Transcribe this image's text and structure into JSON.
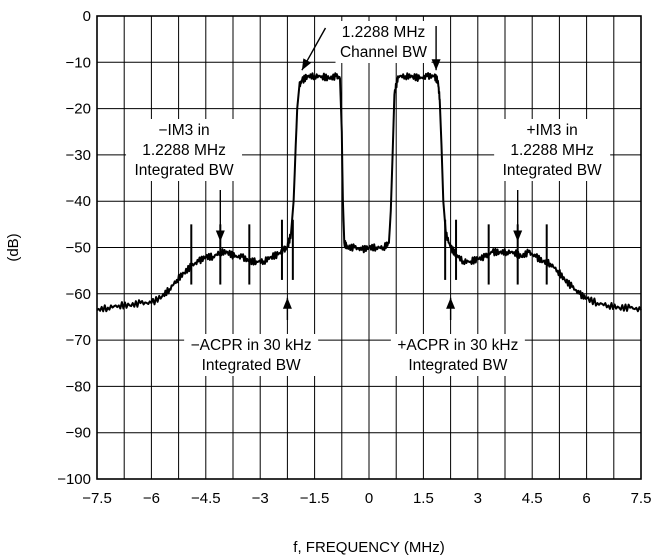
{
  "chart_data": {
    "type": "line",
    "title": "",
    "xlabel": "f, FREQUENCY (MHz)",
    "ylabel": "(dB)",
    "xlim": [
      -7.5,
      7.5
    ],
    "ylim": [
      -100,
      0
    ],
    "grid": true,
    "x_ticks": [
      -7.5,
      -6,
      -4.5,
      -3,
      -1.5,
      0,
      1.5,
      3,
      4.5,
      6,
      7.5
    ],
    "x_tick_labels": [
      "−7.5",
      "−6",
      "−4.5",
      "−3",
      "−1.5",
      "0",
      "1.5",
      "3",
      "4.5",
      "6",
      "7.5"
    ],
    "y_ticks": [
      0,
      -10,
      -20,
      -30,
      -40,
      -50,
      -60,
      -70,
      -80,
      -90,
      -100
    ],
    "y_tick_labels": [
      "0",
      "−10",
      "−20",
      "−30",
      "−40",
      "−50",
      "−60",
      "−70",
      "−80",
      "−90",
      "−100"
    ],
    "x_grid": [
      -7.5,
      -6.75,
      -6,
      -5.25,
      -4.5,
      -3.75,
      -3,
      -2.25,
      -1.5,
      -0.75,
      0,
      0.75,
      1.5,
      2.25,
      3,
      3.75,
      4.5,
      5.25,
      6,
      6.75,
      7.5
    ],
    "series": [
      {
        "x": [
          -7.5,
          -7.2,
          -6.9,
          -6.6,
          -6.3,
          -6.0,
          -5.7,
          -5.5,
          -5.3,
          -5.1,
          -4.9,
          -4.7,
          -4.5,
          -4.3,
          -4.1,
          -3.9,
          -3.7,
          -3.5,
          -3.3,
          -3.1,
          -2.9,
          -2.7,
          -2.5,
          -2.35,
          -2.25,
          -2.15,
          -2.08,
          -2.02,
          -1.98,
          -1.92,
          -1.85,
          -1.7,
          -1.5,
          -1.3,
          -1.1,
          -0.9,
          -0.8,
          -0.75,
          -0.72,
          -0.68,
          -0.6,
          -0.4,
          -0.2,
          0.0,
          0.2,
          0.4,
          0.55,
          0.6,
          0.65,
          0.7,
          0.8,
          1.0,
          1.2,
          1.4,
          1.6,
          1.8,
          1.9,
          1.95,
          2.0,
          2.05,
          2.12,
          2.25,
          2.4,
          2.6,
          2.8,
          3.0,
          3.2,
          3.4,
          3.6,
          3.8,
          4.0,
          4.2,
          4.4,
          4.6,
          4.8,
          5.0,
          5.2,
          5.4,
          5.6,
          5.8,
          6.0,
          6.3,
          6.6,
          6.9,
          7.2,
          7.5
        ],
        "y": [
          -63.5,
          -63,
          -62.5,
          -62.5,
          -62,
          -62,
          -60.5,
          -59,
          -57,
          -55.5,
          -54,
          -53,
          -52,
          -52,
          -51,
          -51,
          -52,
          -52,
          -53,
          -53,
          -53,
          -52,
          -51.5,
          -50.5,
          -50,
          -47,
          -40,
          -28,
          -20,
          -15,
          -14,
          -13,
          -13,
          -13,
          -13.5,
          -13,
          -13.5,
          -25,
          -40,
          -49,
          -50,
          -50,
          -50.5,
          -50,
          -50,
          -50,
          -49,
          -42,
          -30,
          -17,
          -13,
          -13,
          -13,
          -13.5,
          -13,
          -13,
          -14,
          -18,
          -28,
          -40,
          -47,
          -50,
          -51.5,
          -53,
          -53,
          -52.5,
          -52,
          -51,
          -51,
          -51,
          -51,
          -52,
          -51,
          -52,
          -53,
          -53.5,
          -55,
          -57,
          -58.5,
          -60,
          -61,
          -62,
          -62.5,
          -63,
          -63,
          -63.5
        ]
      }
    ],
    "annotations": [
      {
        "lines": [
          "1.2288 MHz",
          "Channel BW"
        ]
      },
      {
        "lines": [
          "−IM3 in",
          "1.2288 MHz",
          "Integrated BW"
        ]
      },
      {
        "lines": [
          "+IM3 in",
          "1.2288 MHz",
          "Integrated BW"
        ]
      },
      {
        "lines": [
          "−ACPR in 30 kHz",
          "Integrated BW"
        ]
      },
      {
        "lines": [
          "+ACPR in 30 kHz",
          "Integrated BW"
        ]
      }
    ],
    "marker_bars_x": [
      -4.9,
      -4.1,
      -3.3,
      3.3,
      4.1,
      4.9
    ],
    "acpr_bars_x": [
      -2.4,
      -2.1,
      2.1,
      2.4
    ],
    "arrow_targets": [
      {
        "x": -1.85,
        "y": -13
      },
      {
        "x": 1.85,
        "y": -13
      },
      {
        "x": -4.1,
        "y": -50
      },
      {
        "x": 4.1,
        "y": -50
      },
      {
        "x": -2.25,
        "y": -60
      },
      {
        "x": 2.25,
        "y": -60
      }
    ]
  }
}
